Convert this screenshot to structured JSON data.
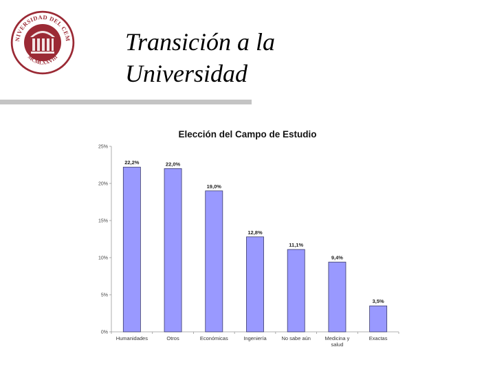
{
  "slide": {
    "title_line1": "Transición a la",
    "title_line2": "Universidad"
  },
  "logo": {
    "text_top": "UNIVERSIDAD DEL CEMA",
    "text_bottom": "MCMLXXVIII",
    "color": "#9b2a35"
  },
  "colors": {
    "bar_fill": "#9999ff",
    "bar_stroke": "#3a3a6a",
    "divider": "#c4c4c4"
  },
  "chart_data": {
    "type": "bar",
    "title": "Elección del Campo de Estudio",
    "categories": [
      "Humanidades",
      "Otros",
      "Económicas",
      "Ingeniería",
      "No sabe aún",
      "Medicina y salud",
      "Exactas"
    ],
    "category_lines": [
      [
        "Humanidades"
      ],
      [
        "Otros"
      ],
      [
        "Económicas"
      ],
      [
        "Ingeniería"
      ],
      [
        "No sabe aún"
      ],
      [
        "Medicina y",
        "salud"
      ],
      [
        "Exactas"
      ]
    ],
    "values": [
      22.2,
      22.0,
      19.0,
      12.8,
      11.1,
      9.4,
      3.5
    ],
    "data_labels": [
      "22,2%",
      "22,0%",
      "19,0%",
      "12,8%",
      "11,1%",
      "9,4%",
      "3,5%"
    ],
    "ylim": [
      0,
      25
    ],
    "yticks": [
      0,
      5,
      10,
      15,
      20,
      25
    ],
    "ytick_labels": [
      "0%",
      "5%",
      "10%",
      "15%",
      "20%",
      "25%"
    ],
    "grid": false,
    "legend": "none",
    "xlabel": "",
    "ylabel": ""
  }
}
